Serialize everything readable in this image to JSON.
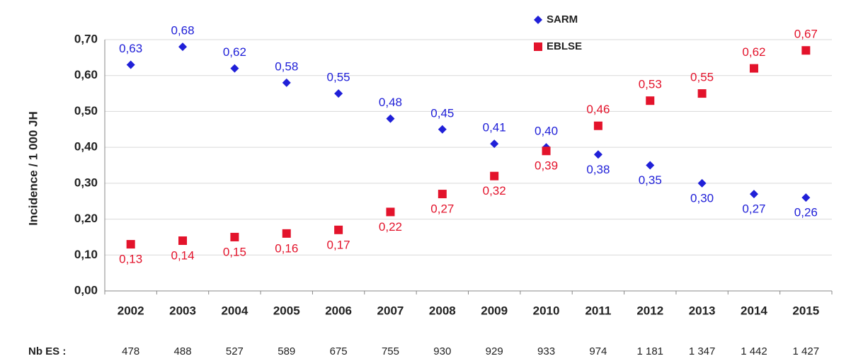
{
  "chart_data": {
    "type": "scatter",
    "y_label": "Incidence / 1 000 JH",
    "categories": [
      "2002",
      "2003",
      "2004",
      "2005",
      "2006",
      "2007",
      "2008",
      "2009",
      "2010",
      "2011",
      "2012",
      "2013",
      "2014",
      "2015"
    ],
    "series": [
      {
        "name": "SARM",
        "color": "#2020d8",
        "marker": "diamond",
        "values": [
          0.63,
          0.68,
          0.62,
          0.58,
          0.55,
          0.48,
          0.45,
          0.41,
          0.4,
          0.38,
          0.35,
          0.3,
          0.27,
          0.26
        ],
        "value_labels": [
          "0,63",
          "0,68",
          "0,62",
          "0,58",
          "0,55",
          "0,48",
          "0,45",
          "0,41",
          "0,40",
          "0,38",
          "0,35",
          "0,30",
          "0,27",
          "0,26"
        ]
      },
      {
        "name": "EBLSE",
        "color": "#e3132b",
        "marker": "square",
        "values": [
          0.13,
          0.14,
          0.15,
          0.16,
          0.17,
          0.22,
          0.27,
          0.32,
          0.39,
          0.46,
          0.53,
          0.55,
          0.62,
          0.67
        ],
        "value_labels": [
          "0,13",
          "0,14",
          "0,15",
          "0,16",
          "0,17",
          "0,22",
          "0,27",
          "0,32",
          "0,39",
          "0,46",
          "0,53",
          "0,55",
          "0,62",
          "0,67"
        ]
      }
    ],
    "ylim": [
      0,
      0.7
    ],
    "yticks": [
      {
        "value": 0,
        "label": "0,00"
      },
      {
        "value": 0.1,
        "label": "0,10"
      },
      {
        "value": 0.2,
        "label": "0,20"
      },
      {
        "value": 0.3,
        "label": "0,30"
      },
      {
        "value": 0.4,
        "label": "0,40"
      },
      {
        "value": 0.5,
        "label": "0,50"
      },
      {
        "value": 0.6,
        "label": "0,60"
      },
      {
        "value": 0.7,
        "label": "0,70"
      }
    ],
    "grid": true,
    "legend": "top",
    "nb_es": {
      "label": "Nb ES :",
      "values": [
        "478",
        "488",
        "527",
        "589",
        "675",
        "755",
        "930",
        "929",
        "933",
        "974",
        "1 181",
        "1 347",
        "1 442",
        "1 427"
      ]
    }
  }
}
